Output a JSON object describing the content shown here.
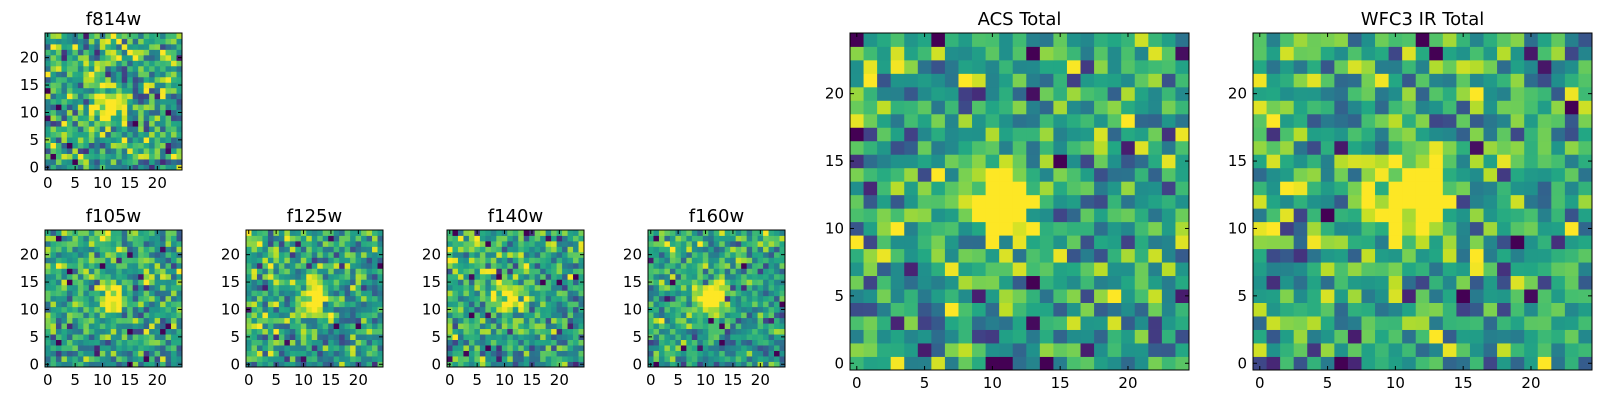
{
  "figure": {
    "description_colormap": "viridis",
    "colors": {
      "low": "#440154",
      "mid": "#21918c",
      "high": "#fde725",
      "background": "#ffffff"
    }
  },
  "chart_data": [
    {
      "id": "f814w",
      "type": "heatmap",
      "title": "f814w",
      "grid_size": 25,
      "xlim": [
        -0.5,
        24.5
      ],
      "ylim": [
        -0.5,
        24.5
      ],
      "xticks": [
        0,
        5,
        10,
        15,
        20
      ],
      "yticks": [
        0,
        5,
        10,
        15,
        20
      ],
      "xtick_labels": [
        "0",
        "5",
        "10",
        "15",
        "20"
      ],
      "ytick_labels": [
        "0",
        "5",
        "10",
        "15",
        "20"
      ],
      "source": {
        "x": 11,
        "y": 11,
        "sigma": 1.8
      },
      "noise": 0.22,
      "seed": 11
    },
    {
      "id": "f105w",
      "type": "heatmap",
      "title": "f105w",
      "grid_size": 25,
      "xlim": [
        -0.5,
        24.5
      ],
      "ylim": [
        -0.5,
        24.5
      ],
      "xticks": [
        0,
        5,
        10,
        15,
        20
      ],
      "yticks": [
        0,
        5,
        10,
        15,
        20
      ],
      "xtick_labels": [
        "0",
        "5",
        "10",
        "15",
        "20"
      ],
      "ytick_labels": [
        "0",
        "5",
        "10",
        "15",
        "20"
      ],
      "source": {
        "x": 12,
        "y": 12,
        "sigma": 1.6
      },
      "noise": 0.17,
      "seed": 23
    },
    {
      "id": "f125w",
      "type": "heatmap",
      "title": "f125w",
      "grid_size": 25,
      "xlim": [
        -0.5,
        24.5
      ],
      "ylim": [
        -0.5,
        24.5
      ],
      "xticks": [
        0,
        5,
        10,
        15,
        20
      ],
      "yticks": [
        0,
        5,
        10,
        15,
        20
      ],
      "xtick_labels": [
        "0",
        "5",
        "10",
        "15",
        "20"
      ],
      "ytick_labels": [
        "0",
        "5",
        "10",
        "15",
        "20"
      ],
      "source": {
        "x": 12,
        "y": 12,
        "sigma": 1.7
      },
      "noise": 0.18,
      "seed": 37
    },
    {
      "id": "f140w",
      "type": "heatmap",
      "title": "f140w",
      "grid_size": 25,
      "xlim": [
        -0.5,
        24.5
      ],
      "ylim": [
        -0.5,
        24.5
      ],
      "xticks": [
        0,
        5,
        10,
        15,
        20
      ],
      "yticks": [
        0,
        5,
        10,
        15,
        20
      ],
      "xtick_labels": [
        "0",
        "5",
        "10",
        "15",
        "20"
      ],
      "ytick_labels": [
        "0",
        "5",
        "10",
        "15",
        "20"
      ],
      "source": {
        "x": 11,
        "y": 12,
        "sigma": 1.6
      },
      "noise": 0.18,
      "seed": 51
    },
    {
      "id": "f160w",
      "type": "heatmap",
      "title": "f160w",
      "grid_size": 25,
      "xlim": [
        -0.5,
        24.5
      ],
      "ylim": [
        -0.5,
        24.5
      ],
      "xticks": [
        0,
        5,
        10,
        15,
        20
      ],
      "yticks": [
        0,
        5,
        10,
        15,
        20
      ],
      "xtick_labels": [
        "0",
        "5",
        "10",
        "15",
        "20"
      ],
      "ytick_labels": [
        "0",
        "5",
        "10",
        "15",
        "20"
      ],
      "source": {
        "x": 11,
        "y": 12,
        "sigma": 2.1
      },
      "noise": 0.16,
      "seed": 67
    },
    {
      "id": "acs-total",
      "type": "heatmap",
      "title": "ACS Total",
      "grid_size": 25,
      "xlim": [
        -0.5,
        24.5
      ],
      "ylim": [
        -0.5,
        24.5
      ],
      "xticks": [
        0,
        5,
        10,
        15,
        20
      ],
      "yticks": [
        0,
        5,
        10,
        15,
        20
      ],
      "xtick_labels": [
        "0",
        "5",
        "10",
        "15",
        "20"
      ],
      "ytick_labels": [
        "0",
        "5",
        "10",
        "15",
        "20"
      ],
      "source": {
        "x": 11,
        "y": 12,
        "sigma": 1.9
      },
      "noise": 0.2,
      "seed": 83
    },
    {
      "id": "wfc3-ir-total",
      "type": "heatmap",
      "title": "WFC3 IR Total",
      "grid_size": 25,
      "xlim": [
        -0.5,
        24.5
      ],
      "ylim": [
        -0.5,
        24.5
      ],
      "xticks": [
        0,
        5,
        10,
        15,
        20
      ],
      "yticks": [
        0,
        5,
        10,
        15,
        20
      ],
      "xtick_labels": [
        "0",
        "5",
        "10",
        "15",
        "20"
      ],
      "ytick_labels": [
        "0",
        "5",
        "10",
        "15",
        "20"
      ],
      "source": {
        "x": 11,
        "y": 12,
        "sigma": 2.0
      },
      "noise": 0.2,
      "seed": 97
    }
  ]
}
